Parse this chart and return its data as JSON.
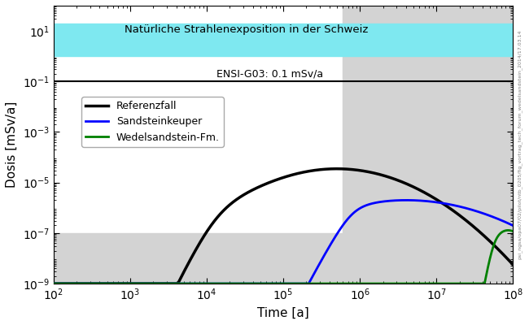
{
  "title": "",
  "xlabel": "Time [a]",
  "ylabel": "Dosis [mSv/a]",
  "xlim": [
    100,
    100000000.0
  ],
  "ylim": [
    1e-09,
    100.0
  ],
  "cyan_band": [
    1.0,
    20.0
  ],
  "cyan_label": "Natürliche Strahlenexposition in der Schweiz",
  "ensi_level": 0.1,
  "ensi_label": "ENSI-G03: 0.1 mSv/a",
  "lower_gray_ymax": 1e-07,
  "gray_x_start": 600000.0,
  "line_colors": [
    "black",
    "blue",
    "green"
  ],
  "legend_labels": [
    "Referenzfall",
    "Sandsteinkeuper",
    "Wedelsandstein-Fm."
  ],
  "background_color": "#ffffff"
}
